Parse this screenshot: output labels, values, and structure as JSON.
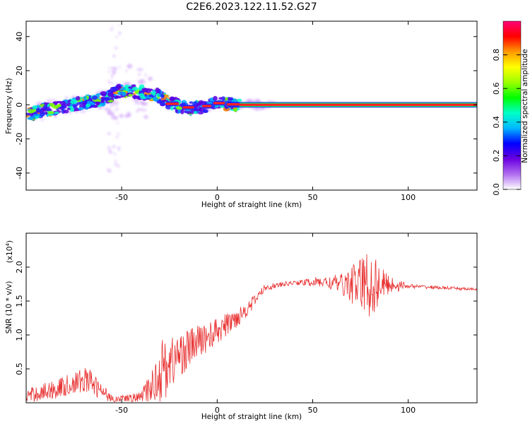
{
  "chart_data": [
    {
      "type": "heatmap",
      "title": "C2E6.2023.122.11.52.G27",
      "xlabel": "Height of straight line (km)",
      "ylabel": "Frequency (Hz)",
      "xlim": [
        -100,
        136
      ],
      "ylim": [
        -50,
        49
      ],
      "xticks": [
        -50,
        0,
        50,
        100
      ],
      "yticks": [
        40,
        20,
        0,
        -20,
        -40
      ],
      "colorbar": {
        "label": "Normalized spectral amplitude",
        "range": [
          0,
          1
        ],
        "ticks": [
          "0.0",
          "0.2",
          "0.4",
          "0.6",
          "0.8"
        ],
        "colormap": [
          "#ffffff",
          "#b06cf0",
          "#6a00e0",
          "#0000ff",
          "#00b8ff",
          "#00ffc8",
          "#00ff00",
          "#9cff00",
          "#ffff00",
          "#ff9900",
          "#ff0000",
          "#ff0077"
        ]
      },
      "ridge": [
        {
          "x": -100,
          "y": -6
        },
        {
          "x": -90,
          "y": -3
        },
        {
          "x": -80,
          "y": -1
        },
        {
          "x": -70,
          "y": 1
        },
        {
          "x": -60,
          "y": 3
        },
        {
          "x": -52,
          "y": 8
        },
        {
          "x": -45,
          "y": 8
        },
        {
          "x": -38,
          "y": 7
        },
        {
          "x": -30,
          "y": 5
        },
        {
          "x": -25,
          "y": 1
        },
        {
          "x": -18,
          "y": -1
        },
        {
          "x": -12,
          "y": -2
        },
        {
          "x": -6,
          "y": -1
        },
        {
          "x": -2,
          "y": 1
        },
        {
          "x": 4,
          "y": 1
        },
        {
          "x": 10,
          "y": 0
        },
        {
          "x": 136,
          "y": 0
        }
      ]
    },
    {
      "type": "line",
      "xlabel": "Height of straight line (km)",
      "ylabel": "SNR (10 * v/v)",
      "scale_note": "(x10",
      "scale_exp": "4",
      "scale_close": ")",
      "xlim": [
        -100,
        136
      ],
      "ylim": [
        0,
        2.5
      ],
      "xticks": [
        -50,
        0,
        50,
        100
      ],
      "yticks": [
        "0.5",
        "1.0",
        "1.5",
        "2.0"
      ],
      "color": "#e83030",
      "envelope": [
        {
          "x": -100,
          "base": 0.1,
          "amp": 0.1
        },
        {
          "x": -85,
          "base": 0.2,
          "amp": 0.15
        },
        {
          "x": -75,
          "base": 0.28,
          "amp": 0.16
        },
        {
          "x": -68,
          "base": 0.35,
          "amp": 0.2
        },
        {
          "x": -60,
          "base": 0.15,
          "amp": 0.12
        },
        {
          "x": -52,
          "base": 0.05,
          "amp": 0.05
        },
        {
          "x": -40,
          "base": 0.08,
          "amp": 0.08
        },
        {
          "x": -34,
          "base": 0.25,
          "amp": 0.25
        },
        {
          "x": -30,
          "base": 0.45,
          "amp": 0.5
        },
        {
          "x": -20,
          "base": 0.7,
          "amp": 0.35
        },
        {
          "x": -10,
          "base": 0.9,
          "amp": 0.25
        },
        {
          "x": 0,
          "base": 1.05,
          "amp": 0.2
        },
        {
          "x": 10,
          "base": 1.25,
          "amp": 0.15
        },
        {
          "x": 18,
          "base": 1.45,
          "amp": 0.1
        },
        {
          "x": 25,
          "base": 1.7,
          "amp": 0.05
        },
        {
          "x": 40,
          "base": 1.77,
          "amp": 0.03
        },
        {
          "x": 55,
          "base": 1.78,
          "amp": 0.08
        },
        {
          "x": 65,
          "base": 1.75,
          "amp": 0.15
        },
        {
          "x": 73,
          "base": 1.75,
          "amp": 0.35
        },
        {
          "x": 80,
          "base": 1.75,
          "amp": 0.55
        },
        {
          "x": 88,
          "base": 1.75,
          "amp": 0.18
        },
        {
          "x": 100,
          "base": 1.72,
          "amp": 0.03
        },
        {
          "x": 136,
          "base": 1.67,
          "amp": 0.02
        }
      ]
    }
  ]
}
